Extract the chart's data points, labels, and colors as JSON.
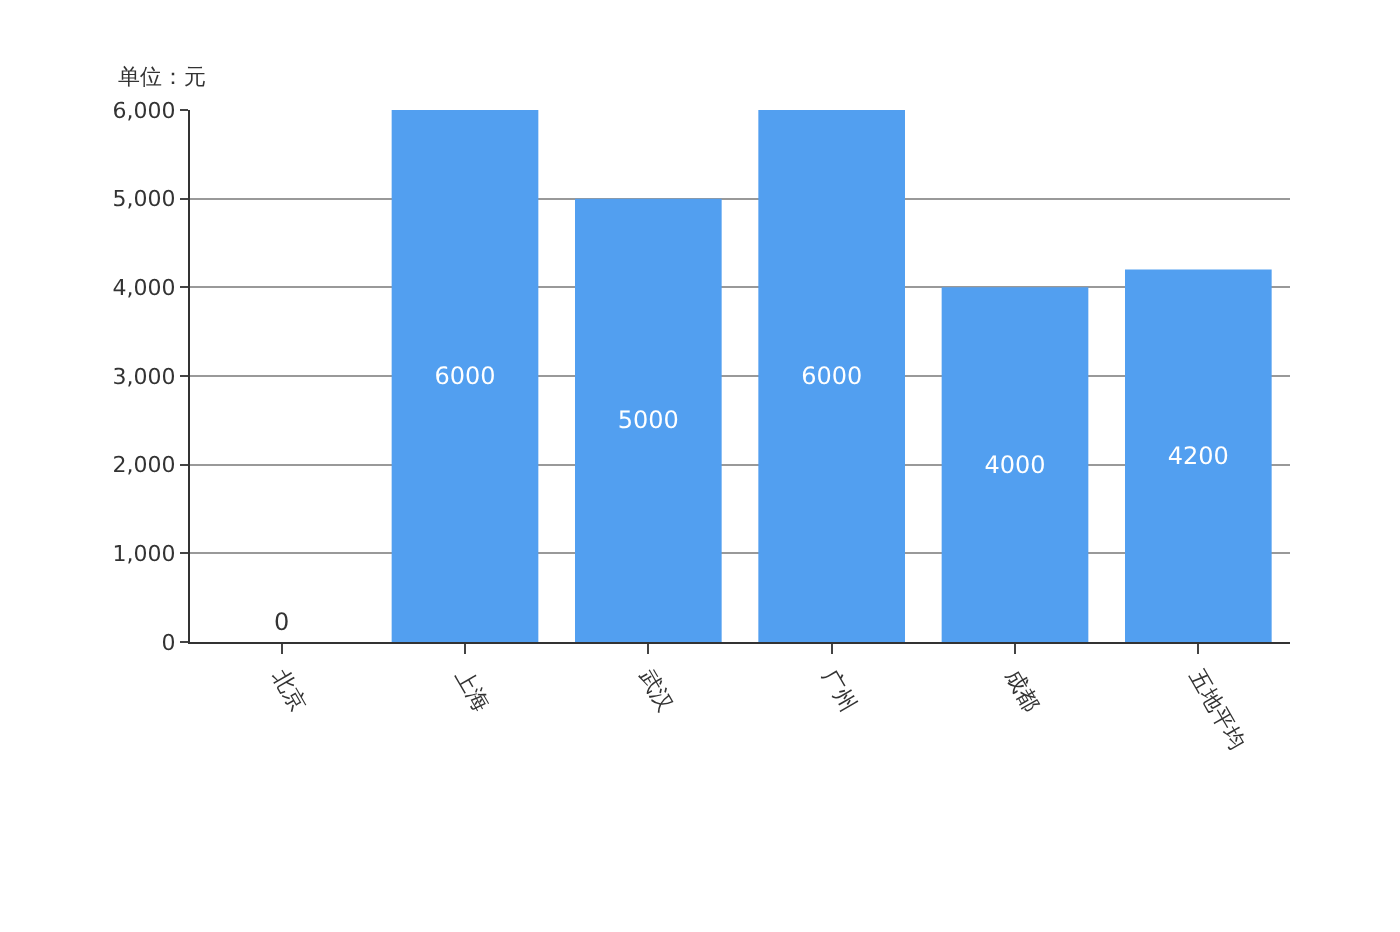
{
  "chart_data": {
    "type": "bar",
    "ylabel": "单位：元",
    "categories": [
      "北京",
      "上海",
      "武汉",
      "广州",
      "成都",
      "五地平均"
    ],
    "series": [
      {
        "color": "#529ff0",
        "values": [
          0,
          6000,
          5000,
          6000,
          4000,
          4200
        ]
      }
    ],
    "ylim": [
      0,
      6000
    ],
    "yticks": [
      {
        "value": 0,
        "label": "0"
      },
      {
        "value": 1000,
        "label": "1,000"
      },
      {
        "value": 2000,
        "label": "2,000"
      },
      {
        "value": 3000,
        "label": "3,000"
      },
      {
        "value": 4000,
        "label": "4,000"
      },
      {
        "value": 5000,
        "label": "5,000"
      },
      {
        "value": 6000,
        "label": "6,000"
      }
    ],
    "grid": "y",
    "data_labels": true
  }
}
